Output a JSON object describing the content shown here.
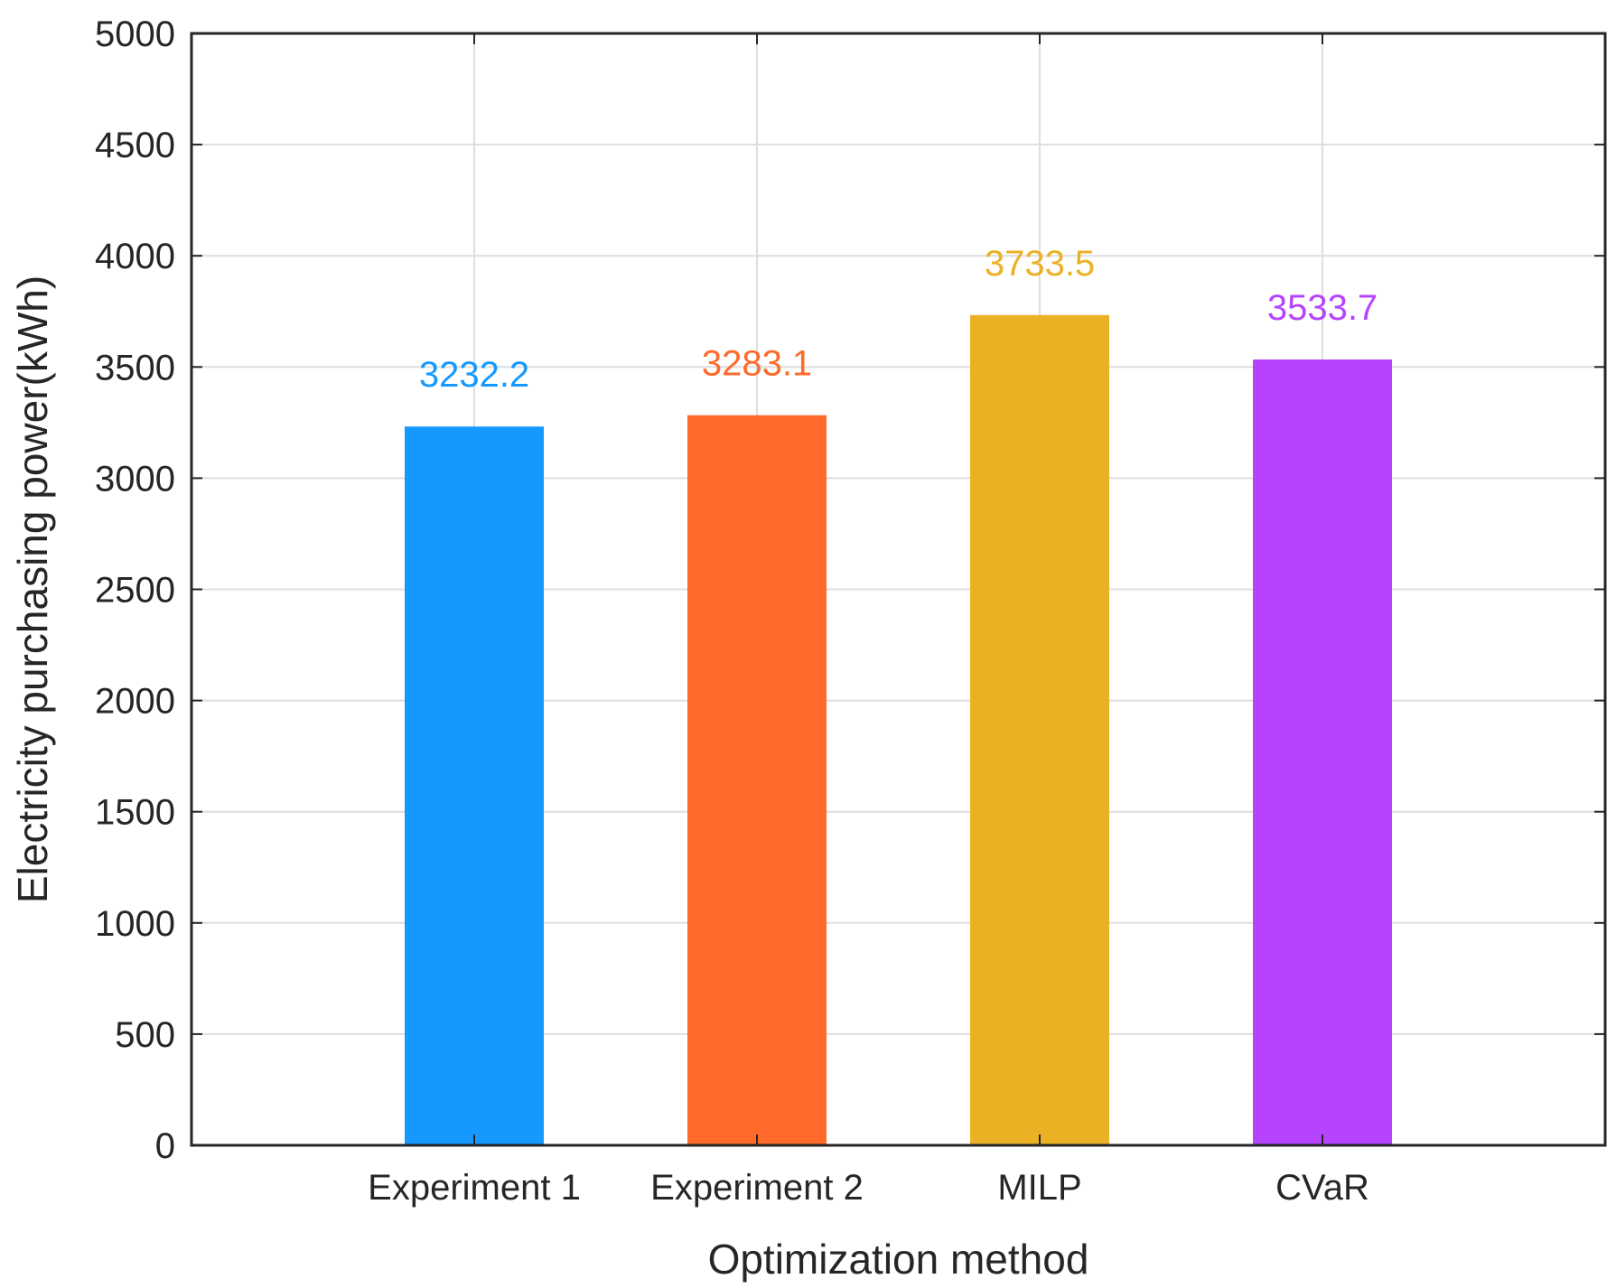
{
  "chart_data": {
    "type": "bar",
    "title": "",
    "xlabel": "Optimization method",
    "ylabel": "Electricity purchasing power(kWh)",
    "categories": [
      "Experiment 1",
      "Experiment 2",
      "MILP",
      "CVaR"
    ],
    "values": [
      3232.2,
      3283.1,
      3733.5,
      3533.7
    ],
    "data_labels": [
      "3232.2",
      "3283.1",
      "3733.5",
      "3533.7"
    ],
    "colors": [
      "#1599ff",
      "#ff6a2b",
      "#ebb125",
      "#b644ff"
    ],
    "ylim": [
      0,
      5000
    ],
    "yticks": [
      0,
      500,
      1000,
      1500,
      2000,
      2500,
      3000,
      3500,
      4000,
      4500,
      5000
    ],
    "xlim": [
      0,
      5
    ],
    "grid": true,
    "legend": "none"
  }
}
